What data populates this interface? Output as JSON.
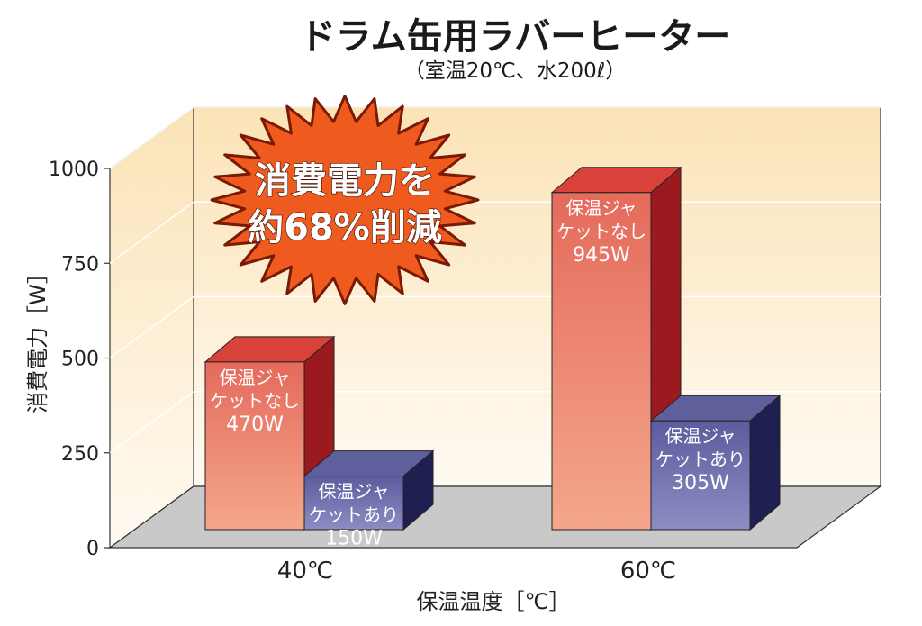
{
  "colors": {
    "background_top": "#fbe3b6",
    "background_bottom": "#fffaf2",
    "floor": "#c9c9c9",
    "red_front_top": "#e56a5c",
    "red_front_bottom": "#f4a78c",
    "red_side": "#9b1a1f",
    "red_top": "#d9423a",
    "blue_front_top": "#5c5c9e",
    "blue_front_bottom": "#8d8dc4",
    "blue_side": "#1f1f52",
    "blue_top": "#5f5f9c",
    "burst": "#ef5a1e"
  },
  "chart_data": {
    "type": "bar",
    "title": "ドラム缶用ラバーヒーター",
    "subtitle": "（室温20℃、水200ℓ）",
    "xlabel": "保温温度［℃］",
    "ylabel": "消費電力［W］",
    "ylim": [
      0,
      1000
    ],
    "yticks": [
      "0",
      "250",
      "500",
      "750",
      "1000"
    ],
    "categories": [
      "40℃",
      "60℃"
    ],
    "series": [
      {
        "name": "保温ジャケットなし",
        "values": [
          470,
          945
        ],
        "labels": [
          [
            "保温ジャ",
            "ケットなし",
            "470W"
          ],
          [
            "保温ジャ",
            "ケットなし",
            "945W"
          ]
        ]
      },
      {
        "name": "保温ジャケットあり",
        "values": [
          150,
          305
        ],
        "labels": [
          [
            "保温ジャ",
            "ケットあり",
            "150W"
          ],
          [
            "保温ジャ",
            "ケットあり",
            "305W"
          ]
        ]
      }
    ],
    "annotation": [
      "消費電力を",
      "約68%削減"
    ]
  }
}
